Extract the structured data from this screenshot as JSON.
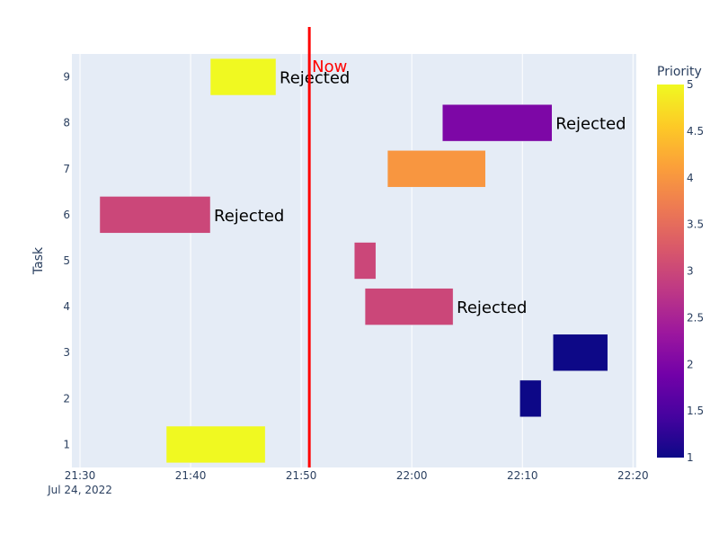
{
  "chart_data": {
    "type": "timeline",
    "title": "",
    "xlabel": "",
    "ylabel": "Task",
    "x_date_label": "Jul 24, 2022",
    "xlim": [
      "21:29:16",
      "22:20:18"
    ],
    "ylim": [
      0.5,
      9.5
    ],
    "x_ticks": [
      "21:30",
      "21:40",
      "21:50",
      "22:00",
      "22:10",
      "22:20"
    ],
    "y_ticks": [
      "1",
      "2",
      "3",
      "4",
      "5",
      "6",
      "7",
      "8",
      "9"
    ],
    "grid": true,
    "tasks": [
      {
        "task": 9,
        "start": "21:41:47",
        "end": "21:47:43",
        "priority": 5,
        "label": "Rejected"
      },
      {
        "task": 8,
        "start": "22:02:46",
        "end": "22:12:41",
        "priority": 2,
        "label": "Rejected"
      },
      {
        "task": 7,
        "start": "21:57:48",
        "end": "22:06:40",
        "priority": 4,
        "label": ""
      },
      {
        "task": 6,
        "start": "21:31:47",
        "end": "21:41:47",
        "priority": 3,
        "label": "Rejected"
      },
      {
        "task": 5,
        "start": "21:54:48",
        "end": "21:56:45",
        "priority": 3,
        "label": ""
      },
      {
        "task": 4,
        "start": "21:55:46",
        "end": "22:03:44",
        "priority": 3,
        "label": "Rejected"
      },
      {
        "task": 3,
        "start": "22:12:46",
        "end": "22:17:43",
        "priority": 1,
        "label": ""
      },
      {
        "task": 2,
        "start": "22:09:46",
        "end": "22:11:42",
        "priority": 1,
        "label": ""
      },
      {
        "task": 1,
        "start": "21:37:48",
        "end": "21:46:45",
        "priority": 5,
        "label": ""
      }
    ],
    "now_line": {
      "time": "21:50:44",
      "label": "Now",
      "color": "#ff0000"
    },
    "colorbar": {
      "title": "Priority",
      "range": [
        1,
        5
      ],
      "ticks": [
        "1",
        "1.5",
        "2",
        "2.5",
        "3",
        "3.5",
        "4",
        "4.5",
        "5"
      ],
      "colorscale": [
        "#0d0887",
        "#46039f",
        "#7201a8",
        "#9c179e",
        "#bd3786",
        "#d8576b",
        "#ed7953",
        "#fb9f3a",
        "#fdca26",
        "#f0f921"
      ]
    }
  }
}
